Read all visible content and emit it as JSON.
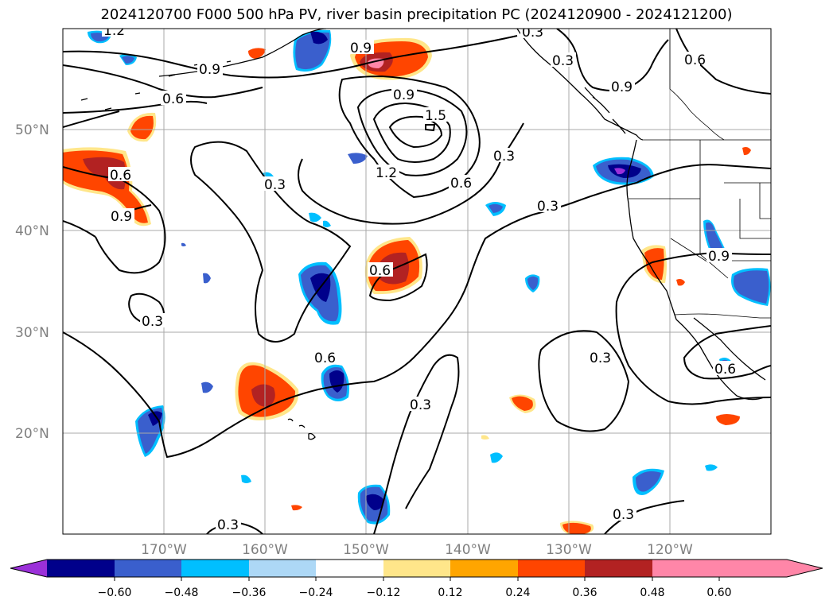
{
  "title": "2024120700 F000 500 hPa PV, river basin precipitation PC (2024120900 - 2024121200)",
  "map": {
    "lat_labels": [
      "50°N",
      "40°N",
      "30°N",
      "20°N"
    ],
    "lon_labels": [
      "170°W",
      "160°W",
      "150°W",
      "140°W",
      "130°W",
      "120°W"
    ],
    "contour_labels": [
      "1.2",
      "0.9",
      "0.6",
      "0.9",
      "0.6",
      "0.9",
      "0.9",
      "0.3",
      "0.3",
      "1.5",
      "0.9",
      "1.2",
      "0.6",
      "0.3",
      "0.3",
      "0.6",
      "0.9",
      "0.3",
      "0.6",
      "0.6",
      "0.3",
      "0.3",
      "0.6",
      "0.3",
      "0.3",
      "0.3"
    ]
  },
  "colorbar": {
    "tick_labels": [
      "−0.60",
      "−0.48",
      "−0.36",
      "−0.24",
      "−0.12",
      "0.12",
      "0.24",
      "0.36",
      "0.48",
      "0.60"
    ],
    "colors": [
      "#9b30d9",
      "#00008b",
      "#3a5fcd",
      "#00bfff",
      "#add8f6",
      "#ffffff",
      "#ffe68a",
      "#ffa500",
      "#ff4500",
      "#b22222",
      "#ff86a8",
      "#ff86a8"
    ]
  }
}
